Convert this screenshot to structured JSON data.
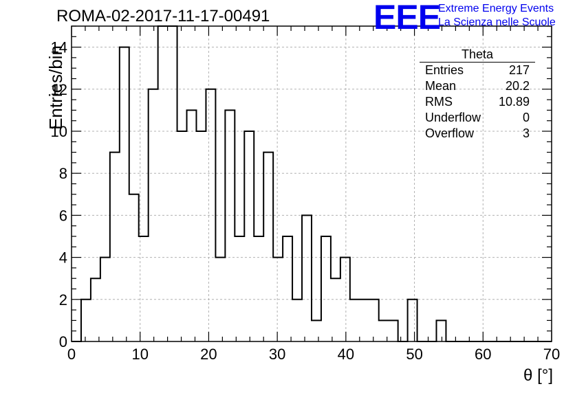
{
  "title": "ROMA-02-2017-11-17-00491",
  "logo": {
    "mark": "EEE",
    "line1": "Extreme Energy Events",
    "line2": "La Scienza nelle Scuole",
    "color": "#0000ee"
  },
  "stats": {
    "name": "Theta",
    "rows": [
      {
        "label": "Entries",
        "value": "217"
      },
      {
        "label": "Mean",
        "value": "20.2"
      },
      {
        "label": "RMS",
        "value": "10.89"
      },
      {
        "label": "Underflow",
        "value": "0"
      },
      {
        "label": "Overflow",
        "value": "3"
      }
    ]
  },
  "chart_data": {
    "type": "bar",
    "title": "ROMA-02-2017-11-17-00491",
    "xlabel": "θ [°]",
    "ylabel": "Entries/bin",
    "xlim": [
      0,
      70
    ],
    "ylim": [
      0,
      15
    ],
    "bin_width": 1.4,
    "x_ticks": [
      0,
      10,
      20,
      30,
      40,
      50,
      60,
      70
    ],
    "y_ticks": [
      0,
      2,
      4,
      6,
      8,
      10,
      12,
      14
    ],
    "grid": true,
    "values": [
      0,
      2,
      3,
      4,
      9,
      14,
      7,
      5,
      12,
      15,
      15,
      10,
      11,
      10,
      12,
      4,
      11,
      5,
      10,
      5,
      9,
      4,
      5,
      2,
      6,
      1,
      5,
      3,
      4,
      2,
      2,
      2,
      1,
      1,
      0,
      2,
      0,
      0,
      1,
      0,
      0,
      0,
      0,
      0,
      0,
      0,
      0,
      0,
      0,
      0
    ]
  }
}
